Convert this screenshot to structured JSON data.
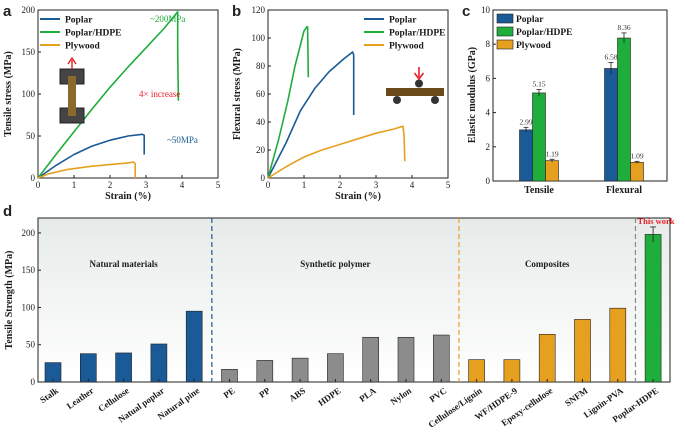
{
  "colors": {
    "poplar": "#1a5a96",
    "poplar_hdpe": "#1fad3c",
    "plywood": "#e6a020",
    "synthetic": "#8c8c8c",
    "annotation_red": "#e8202a",
    "this_work_red": "#e8202a"
  },
  "panels": {
    "a": "a",
    "b": "b",
    "c": "c",
    "d": "d"
  },
  "chart_data": [
    {
      "id": "a",
      "type": "line",
      "xlabel": "Strain (%)",
      "ylabel": "Tensile stress (MPa)",
      "xlim": [
        0,
        5
      ],
      "ylim": [
        0,
        200
      ],
      "xticks": [
        0,
        1,
        2,
        3,
        4,
        5
      ],
      "yticks": [
        0,
        50,
        100,
        150,
        200
      ],
      "legend": [
        "Poplar",
        "Poplar/HDPE",
        "Plywood"
      ],
      "series": [
        {
          "name": "Poplar",
          "x": [
            0,
            0.5,
            1,
            1.5,
            2,
            2.5,
            2.9,
            2.95,
            2.95
          ],
          "y": [
            0,
            15,
            28,
            38,
            45,
            50,
            52,
            51,
            28
          ]
        },
        {
          "name": "Poplar/HDPE",
          "x": [
            0,
            0.5,
            1,
            1.5,
            2,
            2.5,
            3,
            3.5,
            3.88,
            3.88,
            3.9
          ],
          "y": [
            0,
            28,
            55,
            82,
            108,
            132,
            155,
            178,
            198,
            150,
            92
          ]
        },
        {
          "name": "Plywood",
          "x": [
            0,
            0.3,
            0.8,
            1.5,
            2,
            2.5,
            2.65,
            2.7,
            2.7
          ],
          "y": [
            0,
            5,
            10,
            14,
            16,
            18,
            19,
            17,
            0
          ]
        }
      ],
      "annotations": {
        "hdpe_peak": "~200MPa",
        "poplar_peak": "~50MPa",
        "increase": "4× increase"
      }
    },
    {
      "id": "b",
      "type": "line",
      "xlabel": "Strain (%)",
      "ylabel": "Flexural stress (MPa)",
      "xlim": [
        0,
        5
      ],
      "ylim": [
        0,
        120
      ],
      "xticks": [
        0,
        1,
        2,
        3,
        4,
        5
      ],
      "yticks": [
        0,
        20,
        40,
        60,
        80,
        100,
        120
      ],
      "legend": [
        "Poplar",
        "Poplar/HDPE",
        "Plywood"
      ],
      "series": [
        {
          "name": "Poplar",
          "x": [
            0,
            0.5,
            0.9,
            1.3,
            1.7,
            2.1,
            2.35,
            2.38,
            2.38
          ],
          "y": [
            0,
            25,
            48,
            64,
            76,
            85,
            90,
            88,
            45
          ]
        },
        {
          "name": "Poplar/HDPE",
          "x": [
            0,
            0.3,
            0.55,
            0.75,
            0.95,
            1.0,
            1.08,
            1.1,
            1.12
          ],
          "y": [
            0,
            28,
            55,
            80,
            100,
            105,
            108,
            108,
            72
          ]
        },
        {
          "name": "Plywood",
          "x": [
            0,
            0.5,
            1,
            1.5,
            2,
            2.5,
            3,
            3.5,
            3.75,
            3.78,
            3.8
          ],
          "y": [
            0,
            8,
            15,
            20,
            24,
            28,
            32,
            35,
            37,
            30,
            12
          ]
        }
      ]
    },
    {
      "id": "c",
      "type": "bar",
      "ylabel": "Elastic modulus (GPa)",
      "ylim": [
        0,
        10
      ],
      "yticks": [
        0,
        2,
        4,
        6,
        8,
        10
      ],
      "categories": [
        "Tensile",
        "Flexural"
      ],
      "legend": [
        "Poplar",
        "Poplar/HDPE",
        "Plywood"
      ],
      "series": [
        {
          "name": "Poplar",
          "values": [
            2.99,
            6.58
          ],
          "errors": [
            0.15,
            0.35
          ],
          "labels": [
            "2.99",
            "6.58"
          ]
        },
        {
          "name": "Poplar/HDPE",
          "values": [
            5.15,
            8.36
          ],
          "errors": [
            0.2,
            0.3
          ],
          "labels": [
            "5.15",
            "8.36"
          ]
        },
        {
          "name": "Plywood",
          "values": [
            1.19,
            1.09
          ],
          "errors": [
            0.08,
            0.06
          ],
          "labels": [
            "1.19",
            "1.09"
          ]
        }
      ]
    },
    {
      "id": "d",
      "type": "bar",
      "ylabel": "Tensile Strength (MPa)",
      "ylim": [
        0,
        220
      ],
      "yticks": [
        0,
        50,
        100,
        150,
        200
      ],
      "groups": [
        {
          "name": "Natural materials",
          "color": "poplar",
          "categories": [
            "Stalk",
            "Leather",
            "Cellulose",
            "Natual poplar",
            "Natural pine"
          ],
          "values": [
            26,
            38,
            39,
            51,
            95
          ]
        },
        {
          "name": "Synthetic polymer",
          "color": "synthetic",
          "categories": [
            "PE",
            "PP",
            "ABS",
            "HDPE",
            "PLA",
            "Nylon",
            "PVC"
          ],
          "values": [
            17,
            29,
            32,
            38,
            60,
            60,
            63
          ]
        },
        {
          "name": "Composites",
          "color": "plywood",
          "categories": [
            "Cellulose/Lignin",
            "WF/HDPE-9",
            "Epoxy-cellulose",
            "SNFM",
            "Lignin-PVA"
          ],
          "values": [
            30,
            30,
            64,
            84,
            99
          ]
        },
        {
          "name": "This work",
          "color": "poplar_hdpe",
          "categories": [
            "Poplar-HDPE"
          ],
          "values": [
            198
          ],
          "errors": [
            10
          ]
        }
      ],
      "highlight_label": "This work"
    }
  ]
}
